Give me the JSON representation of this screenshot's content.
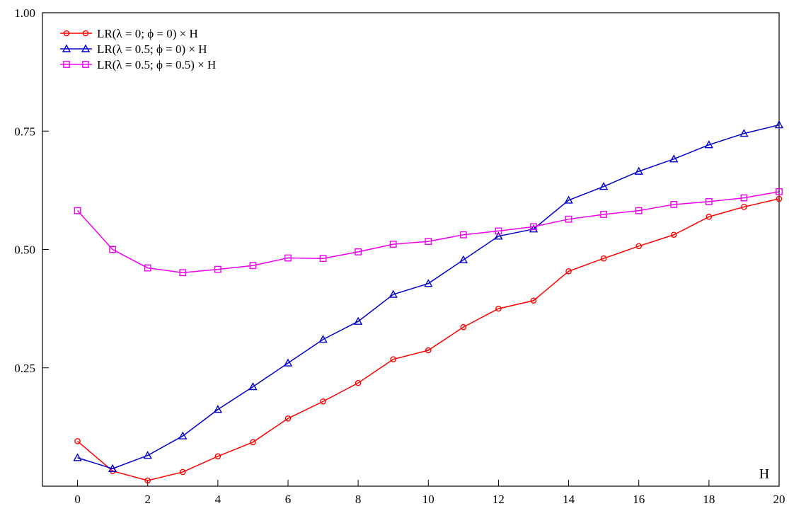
{
  "chart_data": {
    "type": "line",
    "title": "",
    "xlabel": "H",
    "ylabel": "",
    "xlim": [
      -1,
      20
    ],
    "ylim": [
      0,
      1.0
    ],
    "x_ticks": [
      0,
      2,
      4,
      6,
      8,
      10,
      12,
      14,
      16,
      18,
      20
    ],
    "x_tick_labels": [
      "0",
      "2",
      "4",
      "6",
      "8",
      "10",
      "12",
      "14",
      "16",
      "18",
      "20"
    ],
    "y_ticks": [
      0.25,
      0.5,
      0.75,
      1.0
    ],
    "y_tick_labels": [
      "0.25",
      "0.50",
      "0.75",
      "1.00"
    ],
    "grid": false,
    "legend_position": "top-left",
    "x": [
      0,
      1,
      2,
      3,
      4,
      5,
      6,
      7,
      8,
      9,
      10,
      11,
      12,
      13,
      14,
      15,
      16,
      17,
      18,
      19,
      20
    ],
    "series": [
      {
        "name": "LR(λ = 0; ϕ = 0) × H",
        "color": "#ff0000",
        "marker": "circle",
        "values": [
          0.095,
          0.032,
          0.012,
          0.03,
          0.063,
          0.093,
          0.143,
          0.179,
          0.218,
          0.268,
          0.287,
          0.336,
          0.375,
          0.392,
          0.454,
          0.481,
          0.507,
          0.531,
          0.569,
          0.59,
          0.607
        ]
      },
      {
        "name": "LR(λ = 0.5; ϕ = 0) × H",
        "color": "#0000cc",
        "marker": "triangle",
        "values": [
          0.06,
          0.037,
          0.065,
          0.106,
          0.162,
          0.21,
          0.26,
          0.31,
          0.348,
          0.405,
          0.428,
          0.478,
          0.528,
          0.543,
          0.604,
          0.633,
          0.665,
          0.691,
          0.721,
          0.745,
          0.763
        ]
      },
      {
        "name": "LR(λ = 0.5; ϕ = 0.5) × H",
        "color": "#ee00ee",
        "marker": "square",
        "values": [
          0.582,
          0.5,
          0.461,
          0.451,
          0.458,
          0.466,
          0.482,
          0.481,
          0.495,
          0.511,
          0.517,
          0.531,
          0.539,
          0.548,
          0.564,
          0.574,
          0.582,
          0.595,
          0.601,
          0.609,
          0.622
        ]
      }
    ]
  }
}
